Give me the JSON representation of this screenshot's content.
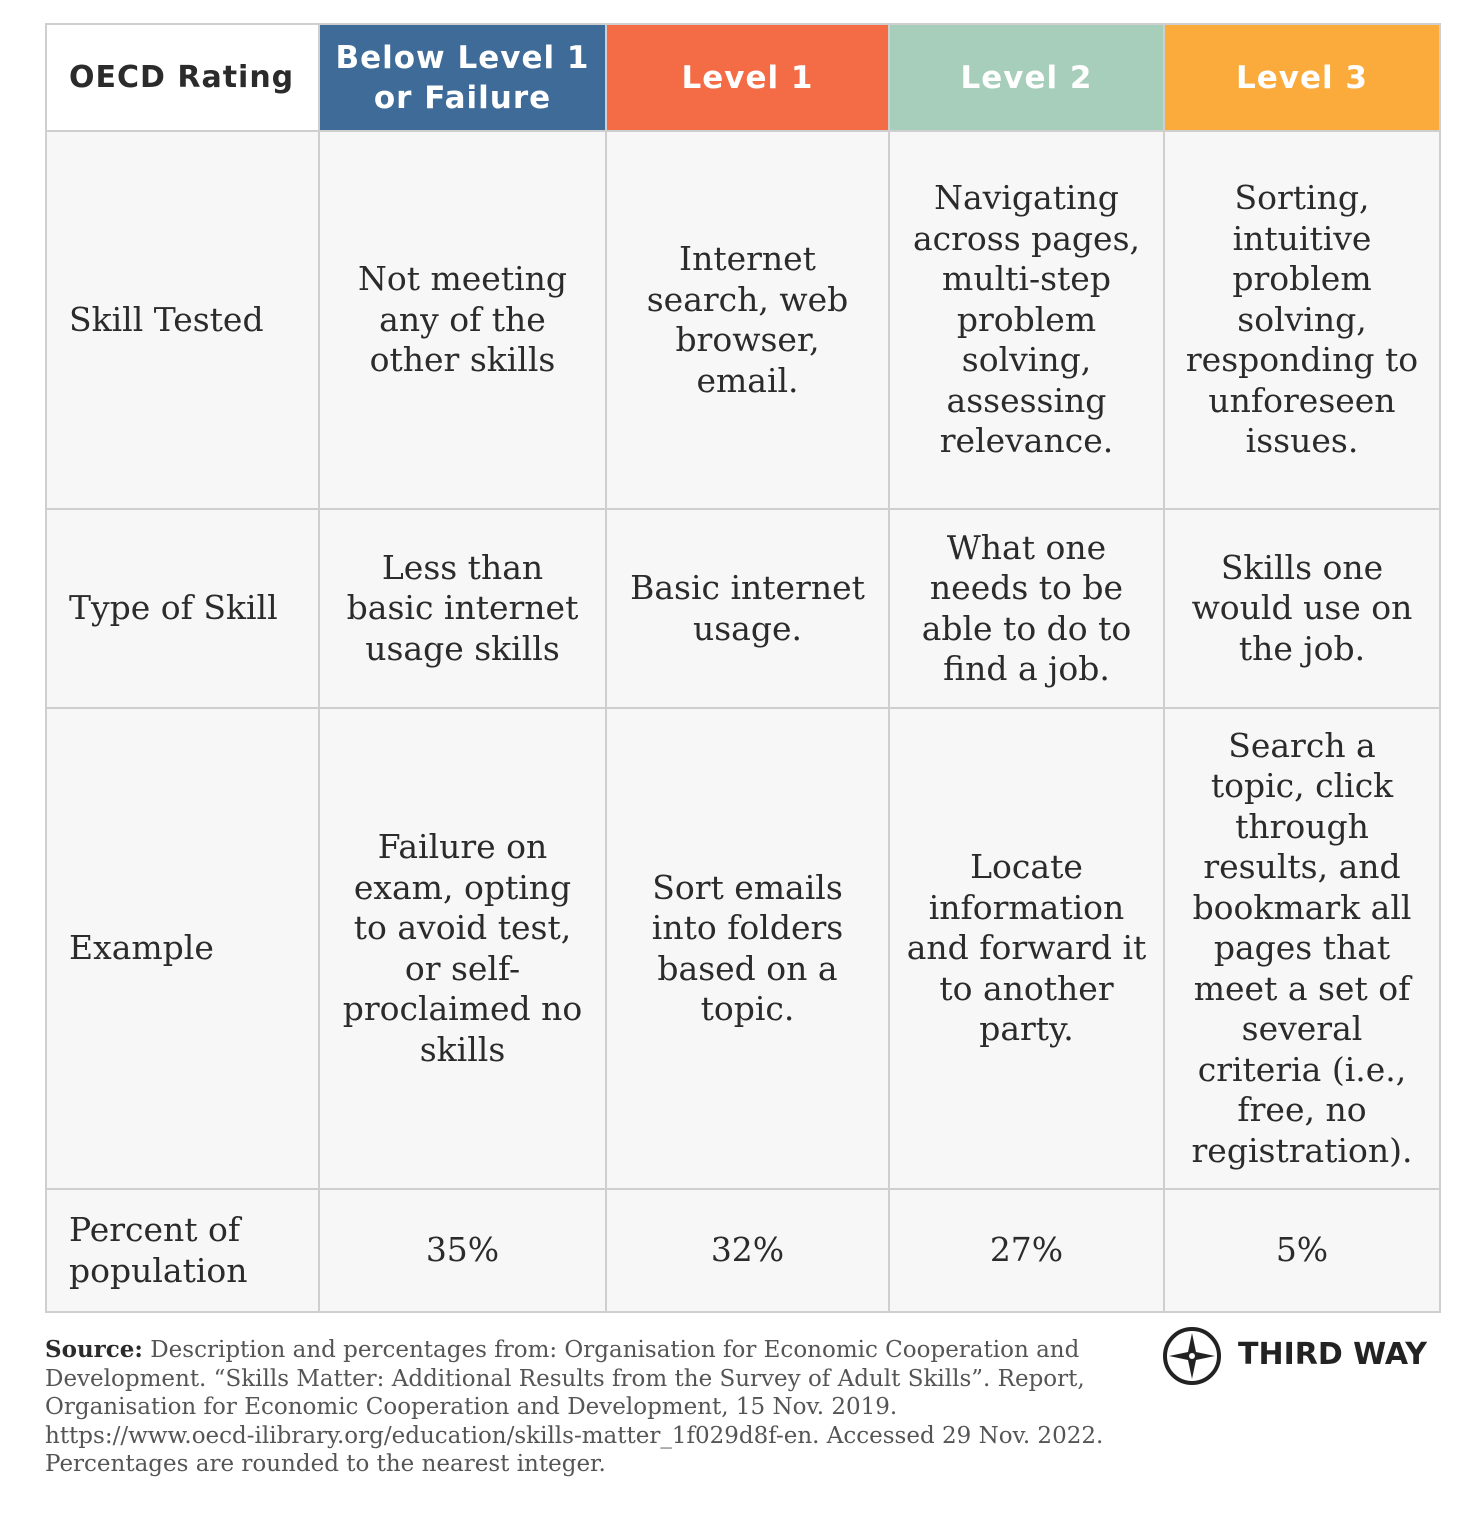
{
  "table": {
    "header": [
      "OECD Rating",
      "Below Level 1 or Failure",
      "Level 1",
      "Level 2",
      "Level 3"
    ],
    "rows": [
      [
        "Skill Tested",
        "Not meeting any of the other skills",
        "Internet search, web browser, email.",
        "Navigating across pages, multi-step problem solving, assessing relevance.",
        "Sorting, intuitive problem solving, responding to unforeseen issues."
      ],
      [
        "Type of Skill",
        "Less than basic internet usage skills",
        "Basic internet usage.",
        "What one needs to be able to do to find a job.",
        "Skills one would use on the job."
      ],
      [
        "Example",
        "Failure on exam, opting to avoid test, or self-proclaimed no skills",
        "Sort emails into folders based on a topic.",
        "Locate information and forward it to another party.",
        "Search a topic, click through results, and bookmark all pages that meet a set of several criteria (i.e., free, no registration)."
      ],
      [
        "Percent of population",
        "35%",
        "32%",
        "27%",
        "5%"
      ]
    ]
  },
  "source": {
    "label": "Source:",
    "text": "Description and percentages from: Organisation for Economic Cooperation and Development. “Skills Matter: Additional Results from the Survey of Adult Skills”. Report, Organisation for Economic Cooperation and Development, 15 Nov. 2019. https://www.oecd-ilibrary.org/education/skills-matter_1f029d8f-en. Accessed 29 Nov. 2022. Percentages are rounded to the nearest integer."
  },
  "logo": {
    "text": "THIRD WAY"
  }
}
